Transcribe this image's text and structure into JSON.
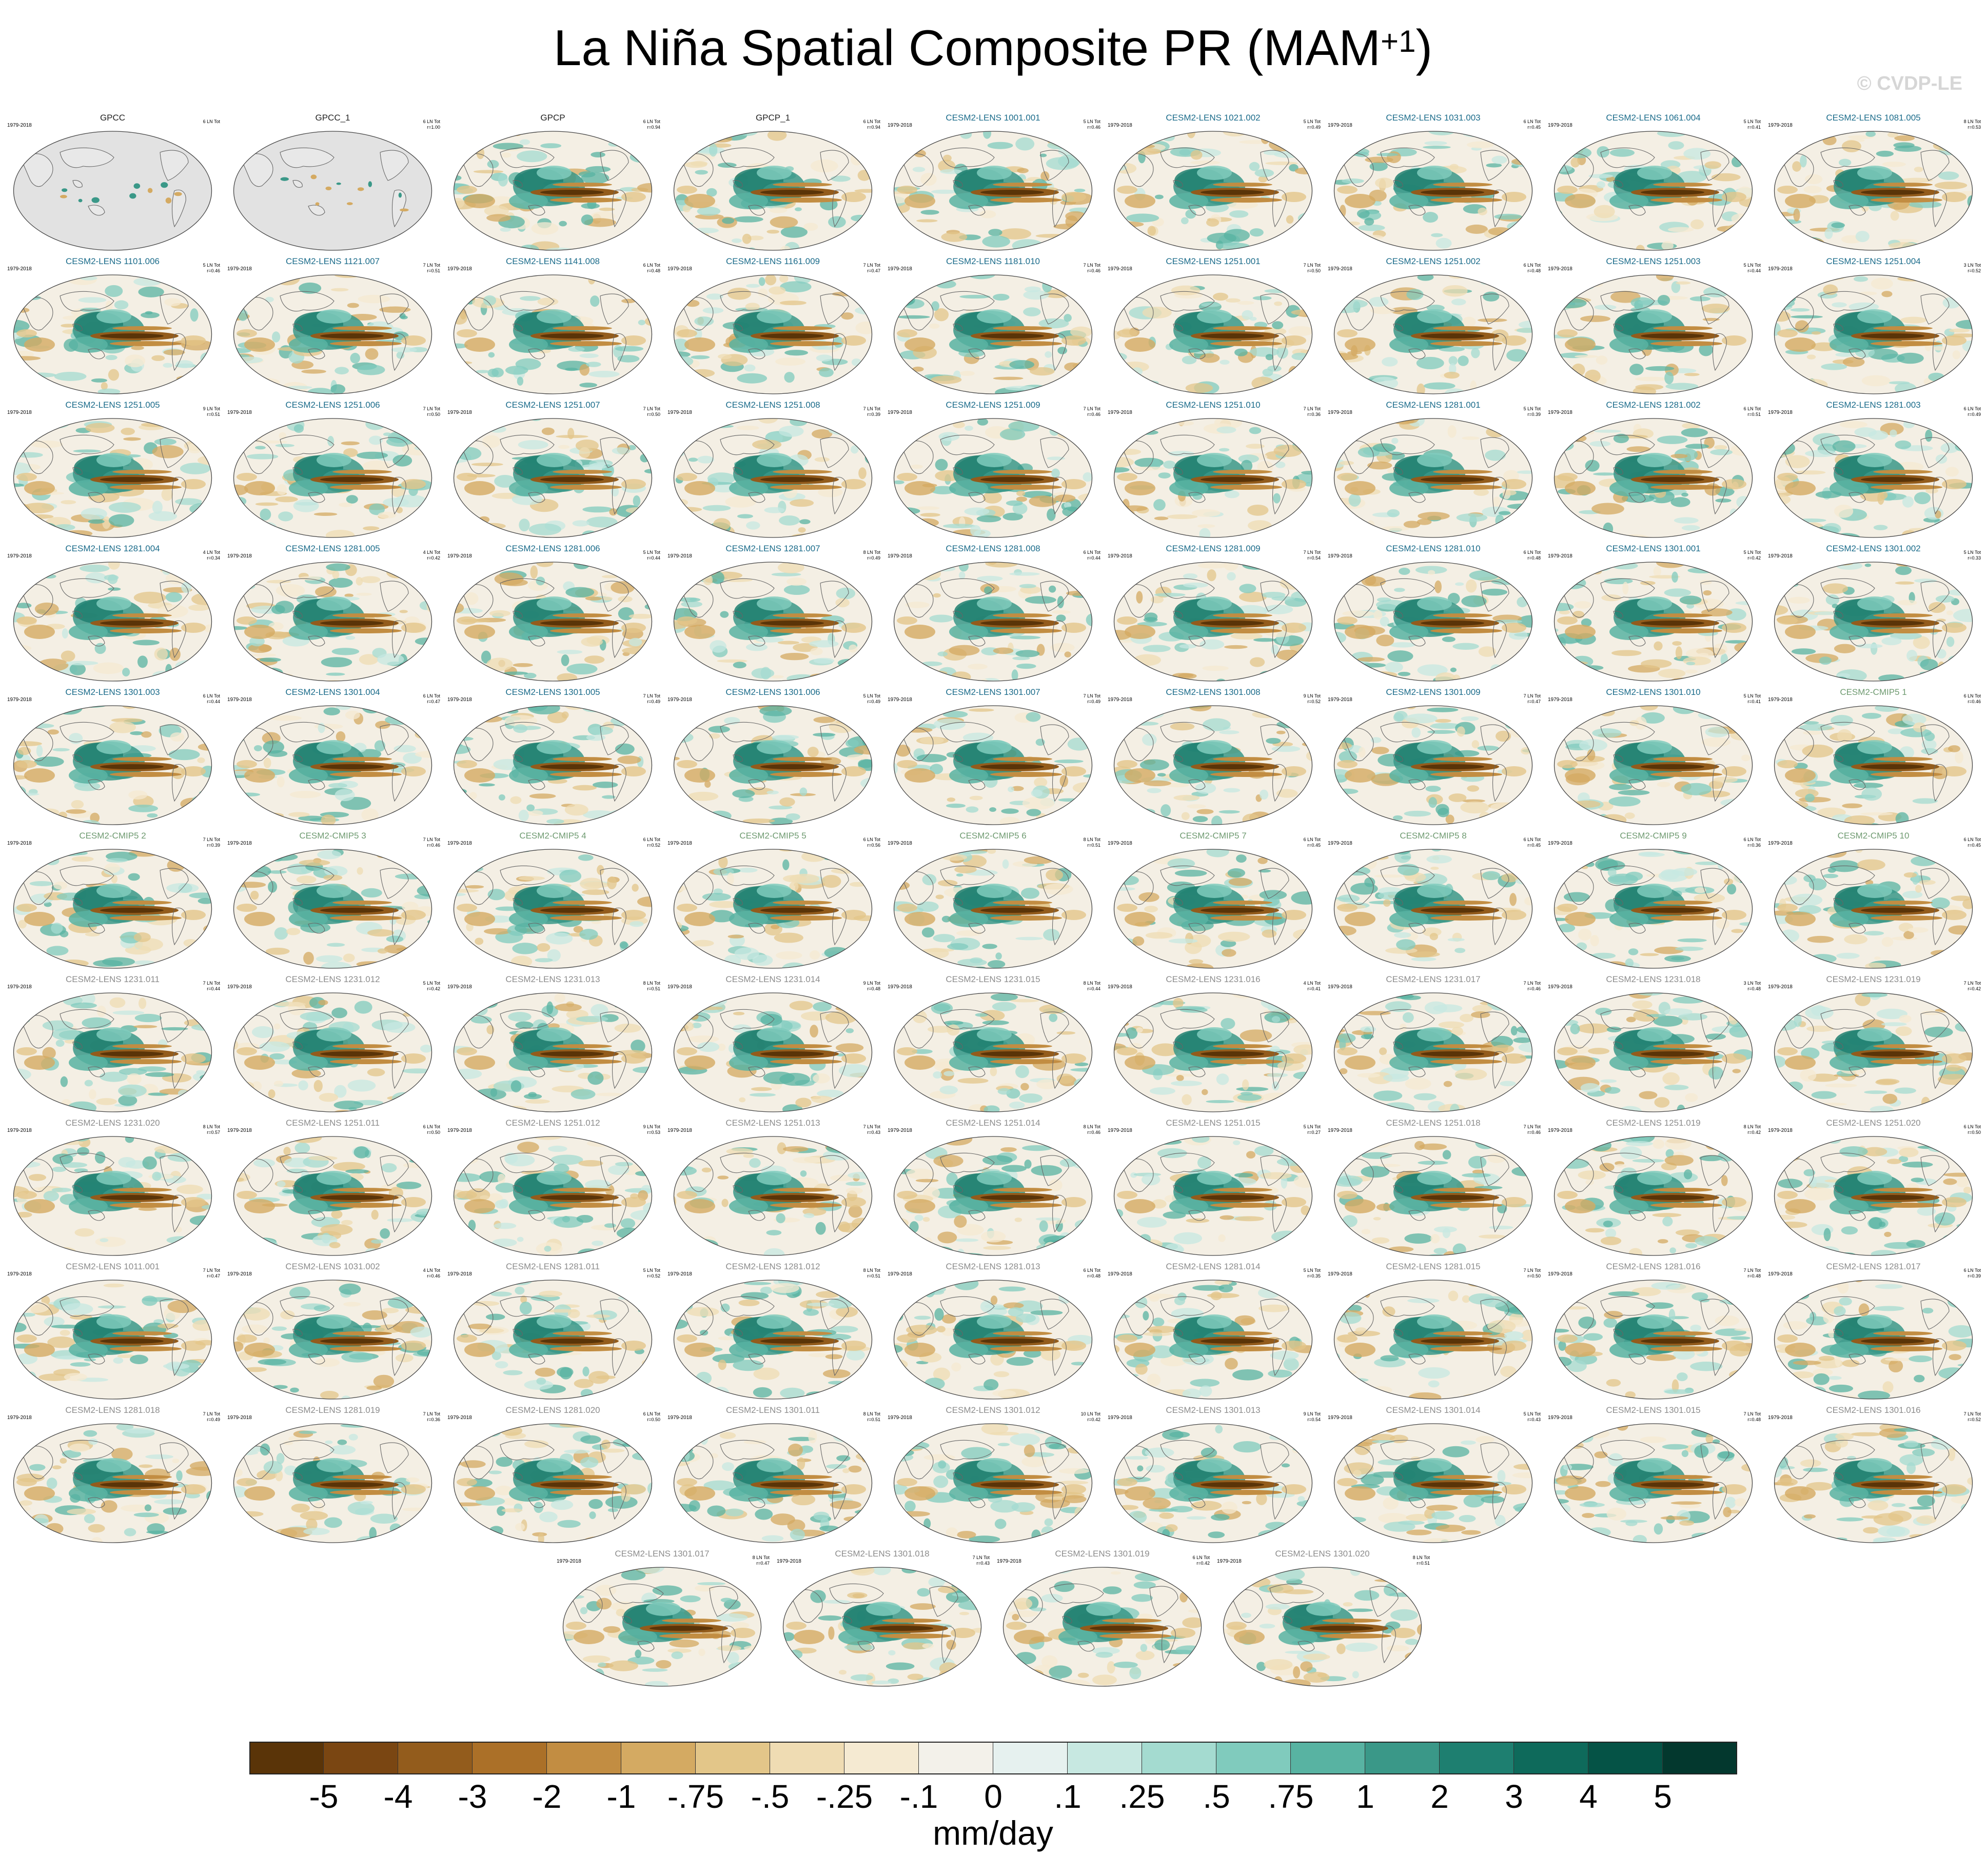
{
  "title_main": "La Niña Spatial Composite PR (MAM",
  "title_sup": "+1",
  "title_close": ")",
  "watermark": "© CVDP-LE",
  "units": "mm/day",
  "colorbar": {
    "labels": [
      "-5",
      "-4",
      "-3",
      "-2",
      "-1",
      "-.75",
      "-.5",
      "-.25",
      "-.1",
      "0",
      ".1",
      ".25",
      ".5",
      ".75",
      "1",
      "2",
      "3",
      "4",
      "5"
    ],
    "colors": [
      "#5a3408",
      "#7a4612",
      "#935c1c",
      "#ab7028",
      "#c28d42",
      "#d4aa62",
      "#e3c689",
      "#efdcb3",
      "#f5ead2",
      "#f3f1ea",
      "#e6f1ef",
      "#c7e8e1",
      "#a4dbd0",
      "#80cbbd",
      "#58b3a2",
      "#3a9888",
      "#1e7f70",
      "#0e6a5b",
      "#055346",
      "#03382e"
    ]
  },
  "groups": {
    "obs": "#222222",
    "lens_blue": "#1a6b8a",
    "cmip5_green": "#6e9a70",
    "lens_gray": "#8c8c8c"
  },
  "panels": [
    {
      "title": "GPCC",
      "years": "1979-2018",
      "events": [
        "6 LN Tot",
        ""
      ],
      "group": "obs",
      "land_only": true
    },
    {
      "title": "GPCC_1",
      "years": "",
      "events": [
        "6 LN Tot",
        "r=1.00"
      ],
      "group": "obs",
      "land_only": true
    },
    {
      "title": "GPCP",
      "years": "",
      "events": [
        "6 LN Tot",
        "r=0.94"
      ],
      "group": "obs"
    },
    {
      "title": "GPCP_1",
      "years": "",
      "events": [
        "6 LN Tot",
        "r=0.94"
      ],
      "group": "obs"
    },
    {
      "title": "CESM2-LENS 1001.001",
      "years": "1979-2018",
      "events": [
        "5 LN Tot",
        "r=0.46"
      ],
      "group": "lens_blue"
    },
    {
      "title": "CESM2-LENS 1021.002",
      "years": "1979-2018",
      "events": [
        "5 LN Tot",
        "r=0.49"
      ],
      "group": "lens_blue"
    },
    {
      "title": "CESM2-LENS 1031.003",
      "years": "1979-2018",
      "events": [
        "6 LN Tot",
        "r=0.45"
      ],
      "group": "lens_blue"
    },
    {
      "title": "CESM2-LENS 1061.004",
      "years": "1979-2018",
      "events": [
        "5 LN Tot",
        "r=0.41"
      ],
      "group": "lens_blue"
    },
    {
      "title": "CESM2-LENS 1081.005",
      "years": "1979-2018",
      "events": [
        "8 LN Tot",
        "r=0.53"
      ],
      "group": "lens_blue"
    },
    {
      "title": "CESM2-LENS 1101.006",
      "years": "1979-2018",
      "events": [
        "5 LN Tot",
        "r=0.46"
      ],
      "group": "lens_blue"
    },
    {
      "title": "CESM2-LENS 1121.007",
      "years": "1979-2018",
      "events": [
        "7 LN Tot",
        "r=0.51"
      ],
      "group": "lens_blue"
    },
    {
      "title": "CESM2-LENS 1141.008",
      "years": "1979-2018",
      "events": [
        "6 LN Tot",
        "r=0.48"
      ],
      "group": "lens_blue"
    },
    {
      "title": "CESM2-LENS 1161.009",
      "years": "1979-2018",
      "events": [
        "7 LN Tot",
        "r=0.47"
      ],
      "group": "lens_blue"
    },
    {
      "title": "CESM2-LENS 1181.010",
      "years": "1979-2018",
      "events": [
        "7 LN Tot",
        "r=0.46"
      ],
      "group": "lens_blue"
    },
    {
      "title": "CESM2-LENS 1251.001",
      "years": "1979-2018",
      "events": [
        "7 LN Tot",
        "r=0.50"
      ],
      "group": "lens_blue"
    },
    {
      "title": "CESM2-LENS 1251.002",
      "years": "1979-2018",
      "events": [
        "6 LN Tot",
        "r=0.48"
      ],
      "group": "lens_blue"
    },
    {
      "title": "CESM2-LENS 1251.003",
      "years": "1979-2018",
      "events": [
        "5 LN Tot",
        "r=0.44"
      ],
      "group": "lens_blue"
    },
    {
      "title": "CESM2-LENS 1251.004",
      "years": "1979-2018",
      "events": [
        "3 LN Tot",
        "r=0.52"
      ],
      "group": "lens_blue"
    },
    {
      "title": "CESM2-LENS 1251.005",
      "years": "1979-2018",
      "events": [
        "9 LN Tot",
        "r=0.51"
      ],
      "group": "lens_blue"
    },
    {
      "title": "CESM2-LENS 1251.006",
      "years": "1979-2018",
      "events": [
        "7 LN Tot",
        "r=0.50"
      ],
      "group": "lens_blue"
    },
    {
      "title": "CESM2-LENS 1251.007",
      "years": "1979-2018",
      "events": [
        "7 LN Tot",
        "r=0.50"
      ],
      "group": "lens_blue"
    },
    {
      "title": "CESM2-LENS 1251.008",
      "years": "1979-2018",
      "events": [
        "7 LN Tot",
        "r=0.39"
      ],
      "group": "lens_blue"
    },
    {
      "title": "CESM2-LENS 1251.009",
      "years": "1979-2018",
      "events": [
        "7 LN Tot",
        "r=0.46"
      ],
      "group": "lens_blue"
    },
    {
      "title": "CESM2-LENS 1251.010",
      "years": "1979-2018",
      "events": [
        "7 LN Tot",
        "r=0.36"
      ],
      "group": "lens_blue"
    },
    {
      "title": "CESM2-LENS 1281.001",
      "years": "1979-2018",
      "events": [
        "5 LN Tot",
        "r=0.39"
      ],
      "group": "lens_blue"
    },
    {
      "title": "CESM2-LENS 1281.002",
      "years": "1979-2018",
      "events": [
        "6 LN Tot",
        "r=0.51"
      ],
      "group": "lens_blue"
    },
    {
      "title": "CESM2-LENS 1281.003",
      "years": "1979-2018",
      "events": [
        "6 LN Tot",
        "r=0.49"
      ],
      "group": "lens_blue"
    },
    {
      "title": "CESM2-LENS 1281.004",
      "years": "1979-2018",
      "events": [
        "4 LN Tot",
        "r=0.34"
      ],
      "group": "lens_blue"
    },
    {
      "title": "CESM2-LENS 1281.005",
      "years": "1979-2018",
      "events": [
        "4 LN Tot",
        "r=0.42"
      ],
      "group": "lens_blue"
    },
    {
      "title": "CESM2-LENS 1281.006",
      "years": "1979-2018",
      "events": [
        "5 LN Tot",
        "r=0.44"
      ],
      "group": "lens_blue"
    },
    {
      "title": "CESM2-LENS 1281.007",
      "years": "1979-2018",
      "events": [
        "8 LN Tot",
        "r=0.49"
      ],
      "group": "lens_blue"
    },
    {
      "title": "CESM2-LENS 1281.008",
      "years": "1979-2018",
      "events": [
        "6 LN Tot",
        "r=0.44"
      ],
      "group": "lens_blue"
    },
    {
      "title": "CESM2-LENS 1281.009",
      "years": "1979-2018",
      "events": [
        "7 LN Tot",
        "r=0.54"
      ],
      "group": "lens_blue"
    },
    {
      "title": "CESM2-LENS 1281.010",
      "years": "1979-2018",
      "events": [
        "6 LN Tot",
        "r=0.48"
      ],
      "group": "lens_blue"
    },
    {
      "title": "CESM2-LENS 1301.001",
      "years": "1979-2018",
      "events": [
        "5 LN Tot",
        "r=0.42"
      ],
      "group": "lens_blue"
    },
    {
      "title": "CESM2-LENS 1301.002",
      "years": "1979-2018",
      "events": [
        "5 LN Tot",
        "r=0.33"
      ],
      "group": "lens_blue"
    },
    {
      "title": "CESM2-LENS 1301.003",
      "years": "1979-2018",
      "events": [
        "6 LN Tot",
        "r=0.44"
      ],
      "group": "lens_blue"
    },
    {
      "title": "CESM2-LENS 1301.004",
      "years": "1979-2018",
      "events": [
        "6 LN Tot",
        "r=0.47"
      ],
      "group": "lens_blue"
    },
    {
      "title": "CESM2-LENS 1301.005",
      "years": "1979-2018",
      "events": [
        "7 LN Tot",
        "r=0.49"
      ],
      "group": "lens_blue"
    },
    {
      "title": "CESM2-LENS 1301.006",
      "years": "1979-2018",
      "events": [
        "5 LN Tot",
        "r=0.49"
      ],
      "group": "lens_blue"
    },
    {
      "title": "CESM2-LENS 1301.007",
      "years": "1979-2018",
      "events": [
        "7 LN Tot",
        "r=0.49"
      ],
      "group": "lens_blue"
    },
    {
      "title": "CESM2-LENS 1301.008",
      "years": "1979-2018",
      "events": [
        "9 LN Tot",
        "r=0.52"
      ],
      "group": "lens_blue"
    },
    {
      "title": "CESM2-LENS 1301.009",
      "years": "1979-2018",
      "events": [
        "7 LN Tot",
        "r=0.47"
      ],
      "group": "lens_blue"
    },
    {
      "title": "CESM2-LENS 1301.010",
      "years": "1979-2018",
      "events": [
        "5 LN Tot",
        "r=0.41"
      ],
      "group": "lens_blue"
    },
    {
      "title": "CESM2-CMIP5 1",
      "years": "1979-2018",
      "events": [
        "6 LN Tot",
        "r=0.46"
      ],
      "group": "cmip5_green"
    },
    {
      "title": "CESM2-CMIP5 2",
      "years": "1979-2018",
      "events": [
        "7 LN Tot",
        "r=0.39"
      ],
      "group": "cmip5_green"
    },
    {
      "title": "CESM2-CMIP5 3",
      "years": "1979-2018",
      "events": [
        "7 LN Tot",
        "r=0.46"
      ],
      "group": "cmip5_green"
    },
    {
      "title": "CESM2-CMIP5 4",
      "years": "1979-2018",
      "events": [
        "6 LN Tot",
        "r=0.52"
      ],
      "group": "cmip5_green"
    },
    {
      "title": "CESM2-CMIP5 5",
      "years": "1979-2018",
      "events": [
        "6 LN Tot",
        "r=0.56"
      ],
      "group": "cmip5_green"
    },
    {
      "title": "CESM2-CMIP5 6",
      "years": "1979-2018",
      "events": [
        "8 LN Tot",
        "r=0.51"
      ],
      "group": "cmip5_green"
    },
    {
      "title": "CESM2-CMIP5 7",
      "years": "1979-2018",
      "events": [
        "6 LN Tot",
        "r=0.45"
      ],
      "group": "cmip5_green"
    },
    {
      "title": "CESM2-CMIP5 8",
      "years": "1979-2018",
      "events": [
        "6 LN Tot",
        "r=0.45"
      ],
      "group": "cmip5_green"
    },
    {
      "title": "CESM2-CMIP5 9",
      "years": "1979-2018",
      "events": [
        "6 LN Tot",
        "r=0.36"
      ],
      "group": "cmip5_green"
    },
    {
      "title": "CESM2-CMIP5 10",
      "years": "1979-2018",
      "events": [
        "6 LN Tot",
        "r=0.45"
      ],
      "group": "cmip5_green"
    },
    {
      "title": "CESM2-LENS 1231.011",
      "years": "1979-2018",
      "events": [
        "7 LN Tot",
        "r=0.44"
      ],
      "group": "lens_gray"
    },
    {
      "title": "CESM2-LENS 1231.012",
      "years": "1979-2018",
      "events": [
        "5 LN Tot",
        "r=0.42"
      ],
      "group": "lens_gray"
    },
    {
      "title": "CESM2-LENS 1231.013",
      "years": "1979-2018",
      "events": [
        "8 LN Tot",
        "r=0.51"
      ],
      "group": "lens_gray"
    },
    {
      "title": "CESM2-LENS 1231.014",
      "years": "1979-2018",
      "events": [
        "9 LN Tot",
        "r=0.48"
      ],
      "group": "lens_gray"
    },
    {
      "title": "CESM2-LENS 1231.015",
      "years": "1979-2018",
      "events": [
        "8 LN Tot",
        "r=0.44"
      ],
      "group": "lens_gray"
    },
    {
      "title": "CESM2-LENS 1231.016",
      "years": "1979-2018",
      "events": [
        "4 LN Tot",
        "r=0.41"
      ],
      "group": "lens_gray"
    },
    {
      "title": "CESM2-LENS 1231.017",
      "years": "1979-2018",
      "events": [
        "7 LN Tot",
        "r=0.46"
      ],
      "group": "lens_gray"
    },
    {
      "title": "CESM2-LENS 1231.018",
      "years": "1979-2018",
      "events": [
        "3 LN Tot",
        "r=0.48"
      ],
      "group": "lens_gray"
    },
    {
      "title": "CESM2-LENS 1231.019",
      "years": "1979-2018",
      "events": [
        "7 LN Tot",
        "r=0.42"
      ],
      "group": "lens_gray"
    },
    {
      "title": "CESM2-LENS 1231.020",
      "years": "1979-2018",
      "events": [
        "8 LN Tot",
        "r=0.57"
      ],
      "group": "lens_gray"
    },
    {
      "title": "CESM2-LENS 1251.011",
      "years": "1979-2018",
      "events": [
        "6 LN Tot",
        "r=0.50"
      ],
      "group": "lens_gray"
    },
    {
      "title": "CESM2-LENS 1251.012",
      "years": "1979-2018",
      "events": [
        "9 LN Tot",
        "r=0.53"
      ],
      "group": "lens_gray"
    },
    {
      "title": "CESM2-LENS 1251.013",
      "years": "1979-2018",
      "events": [
        "7 LN Tot",
        "r=0.43"
      ],
      "group": "lens_gray"
    },
    {
      "title": "CESM2-LENS 1251.014",
      "years": "1979-2018",
      "events": [
        "8 LN Tot",
        "r=0.46"
      ],
      "group": "lens_gray"
    },
    {
      "title": "CESM2-LENS 1251.015",
      "years": "1979-2018",
      "events": [
        "5 LN Tot",
        "r=0.27"
      ],
      "group": "lens_gray"
    },
    {
      "title": "CESM2-LENS 1251.018",
      "years": "1979-2018",
      "events": [
        "7 LN Tot",
        "r=0.46"
      ],
      "group": "lens_gray"
    },
    {
      "title": "CESM2-LENS 1251.019",
      "years": "1979-2018",
      "events": [
        "8 LN Tot",
        "r=0.42"
      ],
      "group": "lens_gray"
    },
    {
      "title": "CESM2-LENS 1251.020",
      "years": "1979-2018",
      "events": [
        "6 LN Tot",
        "r=0.50"
      ],
      "group": "lens_gray"
    },
    {
      "title": "CESM2-LENS 1011.001",
      "years": "1979-2018",
      "events": [
        "7 LN Tot",
        "r=0.47"
      ],
      "group": "lens_gray"
    },
    {
      "title": "CESM2-LENS 1031.002",
      "years": "1979-2018",
      "events": [
        "4 LN Tot",
        "r=0.46"
      ],
      "group": "lens_gray"
    },
    {
      "title": "CESM2-LENS 1281.011",
      "years": "1979-2018",
      "events": [
        "5 LN Tot",
        "r=0.52"
      ],
      "group": "lens_gray"
    },
    {
      "title": "CESM2-LENS 1281.012",
      "years": "1979-2018",
      "events": [
        "8 LN Tot",
        "r=0.51"
      ],
      "group": "lens_gray"
    },
    {
      "title": "CESM2-LENS 1281.013",
      "years": "1979-2018",
      "events": [
        "6 LN Tot",
        "r=0.48"
      ],
      "group": "lens_gray"
    },
    {
      "title": "CESM2-LENS 1281.014",
      "years": "1979-2018",
      "events": [
        "5 LN Tot",
        "r=0.35"
      ],
      "group": "lens_gray"
    },
    {
      "title": "CESM2-LENS 1281.015",
      "years": "1979-2018",
      "events": [
        "7 LN Tot",
        "r=0.50"
      ],
      "group": "lens_gray"
    },
    {
      "title": "CESM2-LENS 1281.016",
      "years": "1979-2018",
      "events": [
        "7 LN Tot",
        "r=0.48"
      ],
      "group": "lens_gray"
    },
    {
      "title": "CESM2-LENS 1281.017",
      "years": "1979-2018",
      "events": [
        "6 LN Tot",
        "r=0.39"
      ],
      "group": "lens_gray"
    },
    {
      "title": "CESM2-LENS 1281.018",
      "years": "1979-2018",
      "events": [
        "7 LN Tot",
        "r=0.49"
      ],
      "group": "lens_gray"
    },
    {
      "title": "CESM2-LENS 1281.019",
      "years": "1979-2018",
      "events": [
        "7 LN Tot",
        "r=0.36"
      ],
      "group": "lens_gray"
    },
    {
      "title": "CESM2-LENS 1281.020",
      "years": "1979-2018",
      "events": [
        "6 LN Tot",
        "r=0.50"
      ],
      "group": "lens_gray"
    },
    {
      "title": "CESM2-LENS 1301.011",
      "years": "1979-2018",
      "events": [
        "8 LN Tot",
        "r=0.51"
      ],
      "group": "lens_gray"
    },
    {
      "title": "CESM2-LENS 1301.012",
      "years": "1979-2018",
      "events": [
        "10 LN Tot",
        "r=0.42"
      ],
      "group": "lens_gray"
    },
    {
      "title": "CESM2-LENS 1301.013",
      "years": "1979-2018",
      "events": [
        "9 LN Tot",
        "r=0.54"
      ],
      "group": "lens_gray"
    },
    {
      "title": "CESM2-LENS 1301.014",
      "years": "1979-2018",
      "events": [
        "5 LN Tot",
        "r=0.43"
      ],
      "group": "lens_gray"
    },
    {
      "title": "CESM2-LENS 1301.015",
      "years": "1979-2018",
      "events": [
        "7 LN Tot",
        "r=0.48"
      ],
      "group": "lens_gray"
    },
    {
      "title": "CESM2-LENS 1301.016",
      "years": "1979-2018",
      "events": [
        "7 LN Tot",
        "r=0.52"
      ],
      "group": "lens_gray"
    },
    {
      "title": "CESM2-LENS 1301.017",
      "years": "1979-2018",
      "events": [
        "8 LN Tot",
        "r=0.47"
      ],
      "group": "lens_gray"
    },
    {
      "title": "CESM2-LENS 1301.018",
      "years": "1979-2018",
      "events": [
        "7 LN Tot",
        "r=0.43"
      ],
      "group": "lens_gray"
    },
    {
      "title": "CESM2-LENS 1301.019",
      "years": "1979-2018",
      "events": [
        "6 LN Tot",
        "r=0.42"
      ],
      "group": "lens_gray"
    },
    {
      "title": "CESM2-LENS 1301.020",
      "years": "1979-2018",
      "events": [
        "8 LN Tot",
        "r=0.51"
      ],
      "group": "lens_gray"
    }
  ]
}
